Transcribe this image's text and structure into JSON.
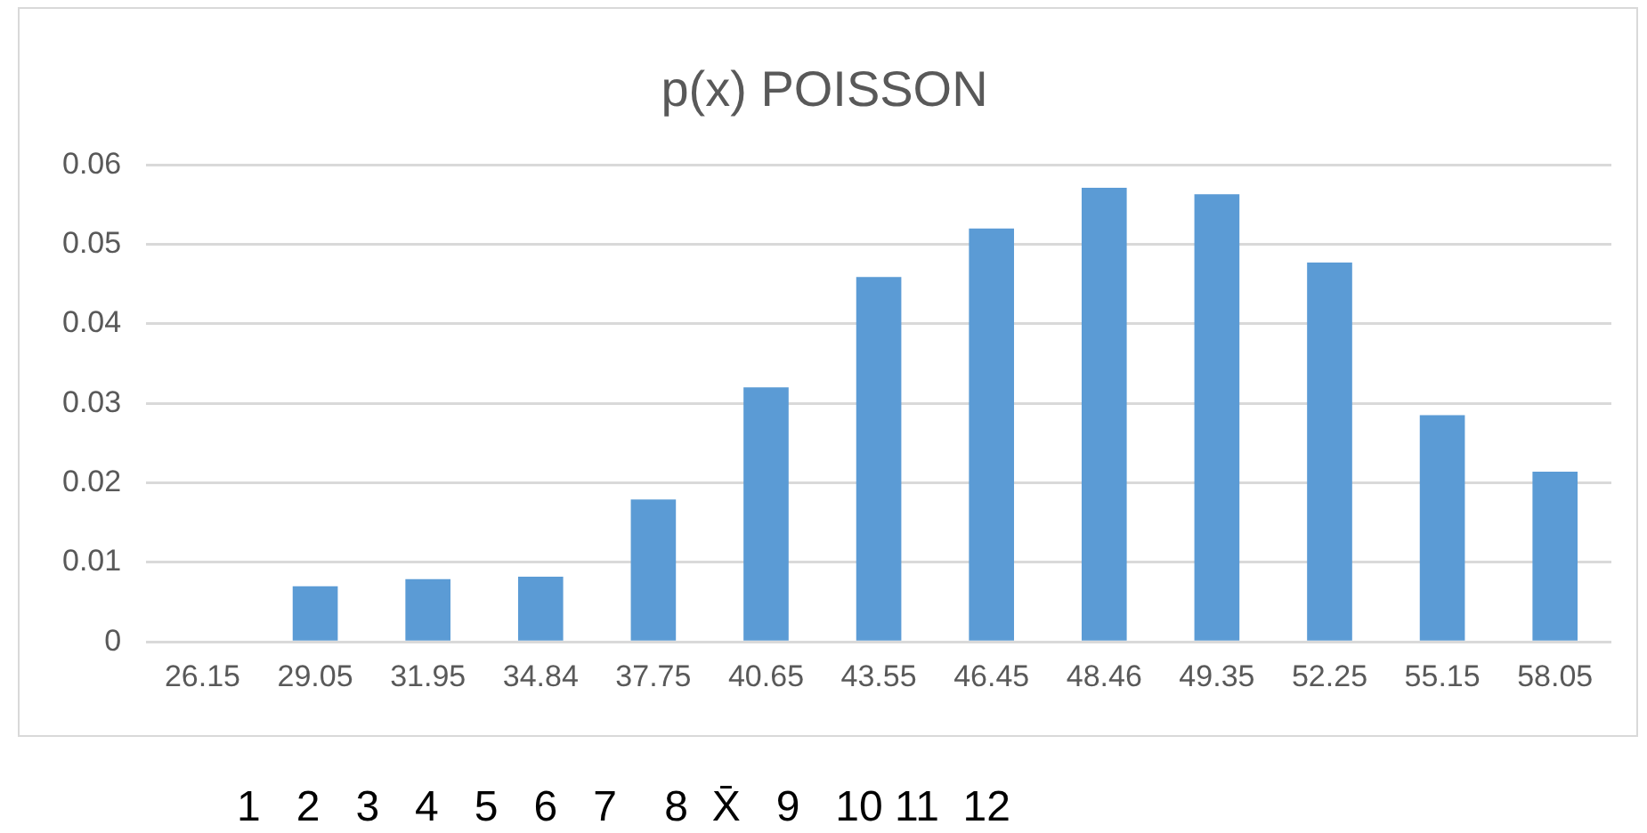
{
  "chart_data": {
    "type": "bar",
    "title": "p(x) POISSON",
    "categories": [
      "26.15",
      "29.05",
      "31.95",
      "34.84",
      "37.75",
      "40.65",
      "43.55",
      "46.45",
      "48.46",
      "49.35",
      "52.25",
      "55.15",
      "58.05"
    ],
    "values": [
      null,
      0.007,
      0.0079,
      0.0082,
      0.0179,
      0.032,
      0.0459,
      0.052,
      0.0571,
      0.0563,
      0.0477,
      0.0285,
      0.0214
    ],
    "color": "#5b9bd5",
    "ylim": [
      0,
      0.06
    ],
    "yticks": [
      0,
      0.01,
      0.02,
      0.03,
      0.04,
      0.05,
      0.06
    ],
    "grid": "y",
    "legend": false,
    "annotations": [
      "1   2   3   4   5   6   7    8  X̄   9   10 11  12"
    ]
  }
}
